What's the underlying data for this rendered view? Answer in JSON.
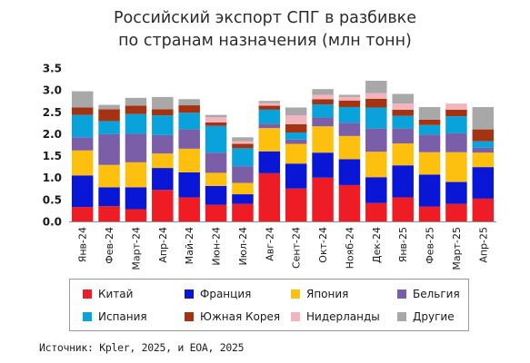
{
  "chart_data": {
    "type": "bar",
    "stacked": true,
    "title_lines": [
      "Российский экспорт СПГ в разбивке",
      "по странам назначения (млн тонн)"
    ],
    "categories": [
      "Янв-24",
      "Фев-24",
      "Март-24",
      "Апр-24",
      "Май-24",
      "Июн-24",
      "Июл-24",
      "Авг-24",
      "Сент-24",
      "Окт-24",
      "Нояб-24",
      "Дек-24",
      "Янв-25",
      "Фев-25",
      "Март-25",
      "Апр-25"
    ],
    "ylim": [
      0,
      3.5
    ],
    "yticks": [
      "0.0",
      "0.5",
      "1.0",
      "1.5",
      "2.0",
      "2.5",
      "3.0",
      "3.5"
    ],
    "grid": false,
    "legend_position": "bottom",
    "series": [
      {
        "name": "Китай",
        "color": "#ee1c25",
        "values": [
          0.33,
          0.35,
          0.28,
          0.72,
          0.55,
          0.38,
          0.4,
          1.1,
          0.75,
          1.0,
          0.83,
          0.42,
          0.55,
          0.34,
          0.4,
          0.52
        ]
      },
      {
        "name": "Франция",
        "color": "#0a16d6",
        "values": [
          0.72,
          0.43,
          0.5,
          0.5,
          0.57,
          0.43,
          0.22,
          0.5,
          0.57,
          0.57,
          0.59,
          0.59,
          0.73,
          0.73,
          0.5,
          0.72
        ]
      },
      {
        "name": "Япония",
        "color": "#fdc00f",
        "values": [
          0.57,
          0.51,
          0.57,
          0.33,
          0.54,
          0.3,
          0.26,
          0.53,
          0.45,
          0.6,
          0.53,
          0.58,
          0.5,
          0.51,
          0.68,
          0.33
        ]
      },
      {
        "name": "Бельгия",
        "color": "#7b5ea8",
        "values": [
          0.3,
          0.7,
          0.65,
          0.42,
          0.44,
          0.46,
          0.38,
          0.1,
          0.1,
          0.2,
          0.3,
          0.53,
          0.34,
          0.4,
          0.43,
          0.11
        ]
      },
      {
        "name": "Испания",
        "color": "#0aa2db",
        "values": [
          0.51,
          0.3,
          0.45,
          0.45,
          0.38,
          0.61,
          0.41,
          0.32,
          0.16,
          0.3,
          0.36,
          0.48,
          0.29,
          0.22,
          0.39,
          0.15
        ]
      },
      {
        "name": "Южная Корея",
        "color": "#a43312",
        "values": [
          0.17,
          0.27,
          0.19,
          0.14,
          0.17,
          0.08,
          0.1,
          0.09,
          0.19,
          0.12,
          0.15,
          0.2,
          0.14,
          0.12,
          0.15,
          0.27
        ]
      },
      {
        "name": "Нидерланды",
        "color": "#f2b5bd",
        "values": [
          0.0,
          0.0,
          0.0,
          0.0,
          0.0,
          0.12,
          0.06,
          0.06,
          0.2,
          0.1,
          0.08,
          0.13,
          0.14,
          0.0,
          0.14,
          0.0
        ]
      },
      {
        "name": "Другие",
        "color": "#a8a8a8",
        "values": [
          0.37,
          0.1,
          0.18,
          0.28,
          0.14,
          0.05,
          0.09,
          0.05,
          0.18,
          0.13,
          0.05,
          0.28,
          0.22,
          0.29,
          0.0,
          0.51
        ]
      }
    ]
  },
  "source_text": "Источник: Kpler, 2025, и EOA, 2025"
}
